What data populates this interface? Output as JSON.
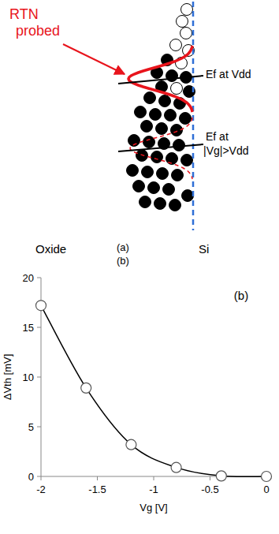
{
  "diagram": {
    "annotation": "RTN probed",
    "fermi_labels": [
      "Ef at Vdd",
      "Ef at |Vg|>Vdd"
    ],
    "regions": [
      "Oxide",
      "Si"
    ],
    "panel_label": "(a)",
    "extra_label": "(b)"
  },
  "chart_data": {
    "type": "line",
    "annotation": "(b)",
    "x_label": "Vg [V]",
    "y_label": "ΔVth [mV]",
    "x": [
      -2,
      -1.6,
      -1.2,
      -0.8,
      -0.4,
      0
    ],
    "values": [
      17.2,
      8.9,
      3.2,
      0.9,
      0.05,
      0
    ],
    "color": "#000000",
    "marker": "circle",
    "line_style": "solid",
    "xlim": [
      -2,
      0
    ],
    "xticks": [
      -2,
      -1.5,
      -1,
      -0.5,
      0
    ],
    "ylim": [
      0,
      20
    ],
    "yticks": [
      0,
      5,
      10,
      15,
      20
    ],
    "grid": false
  }
}
